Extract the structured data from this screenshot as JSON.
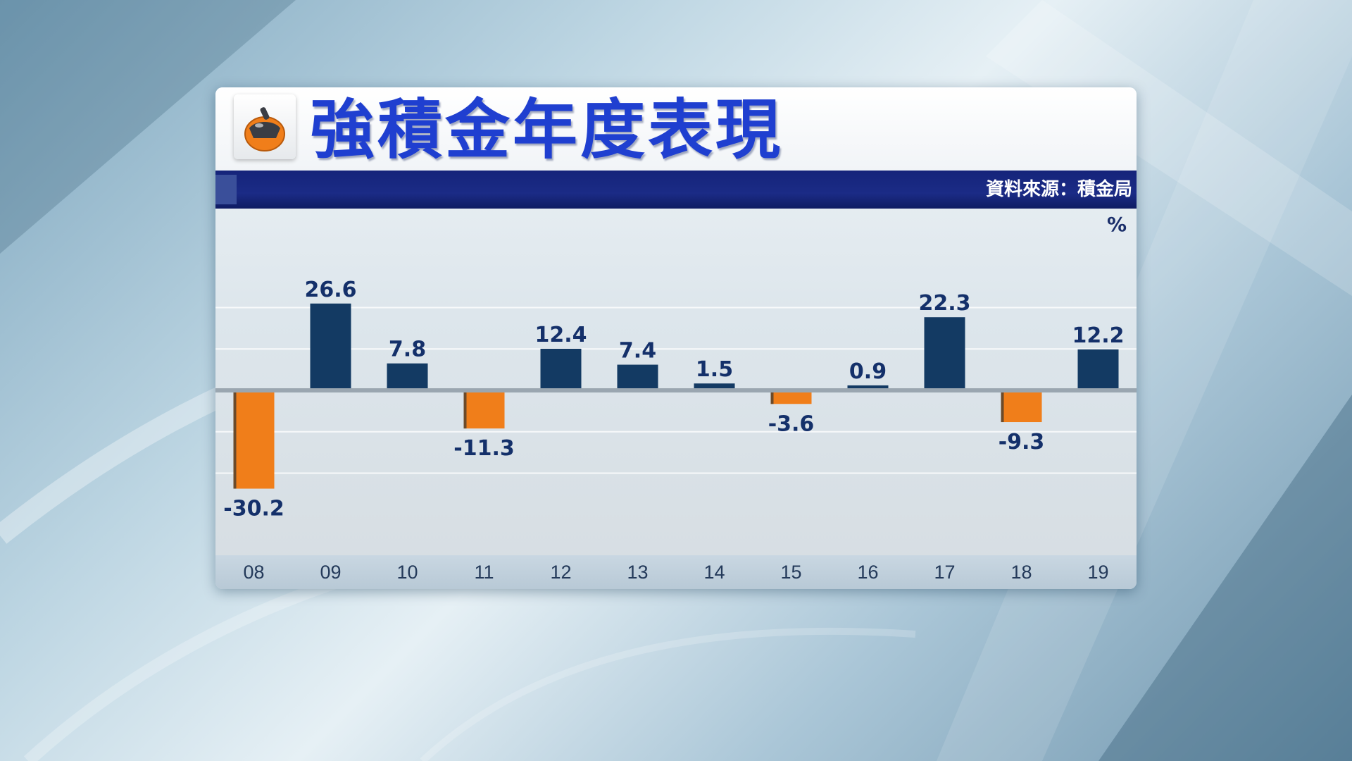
{
  "chart_data": {
    "type": "bar",
    "title": "強積金年度表現",
    "source": "資料來源：積金局",
    "unit": "%",
    "categories": [
      "08",
      "09",
      "10",
      "11",
      "12",
      "13",
      "14",
      "15",
      "16",
      "17",
      "18",
      "19"
    ],
    "values": [
      -30.2,
      26.6,
      7.8,
      -11.3,
      12.4,
      7.4,
      1.5,
      -3.6,
      0.9,
      22.3,
      -9.3,
      12.2
    ],
    "value_labels": [
      "-30.2",
      "26.6",
      "7.8",
      "-11.3",
      "12.4",
      "7.4",
      "1.5",
      "-3.6",
      "0.9",
      "22.3",
      "-9.3",
      "12.2"
    ],
    "ylim": [
      -38,
      38
    ],
    "grid": true,
    "colors": {
      "positive": "#133a63",
      "negative": "#f07e1a",
      "label": "#14306a",
      "title": "#1f3fd0"
    }
  }
}
